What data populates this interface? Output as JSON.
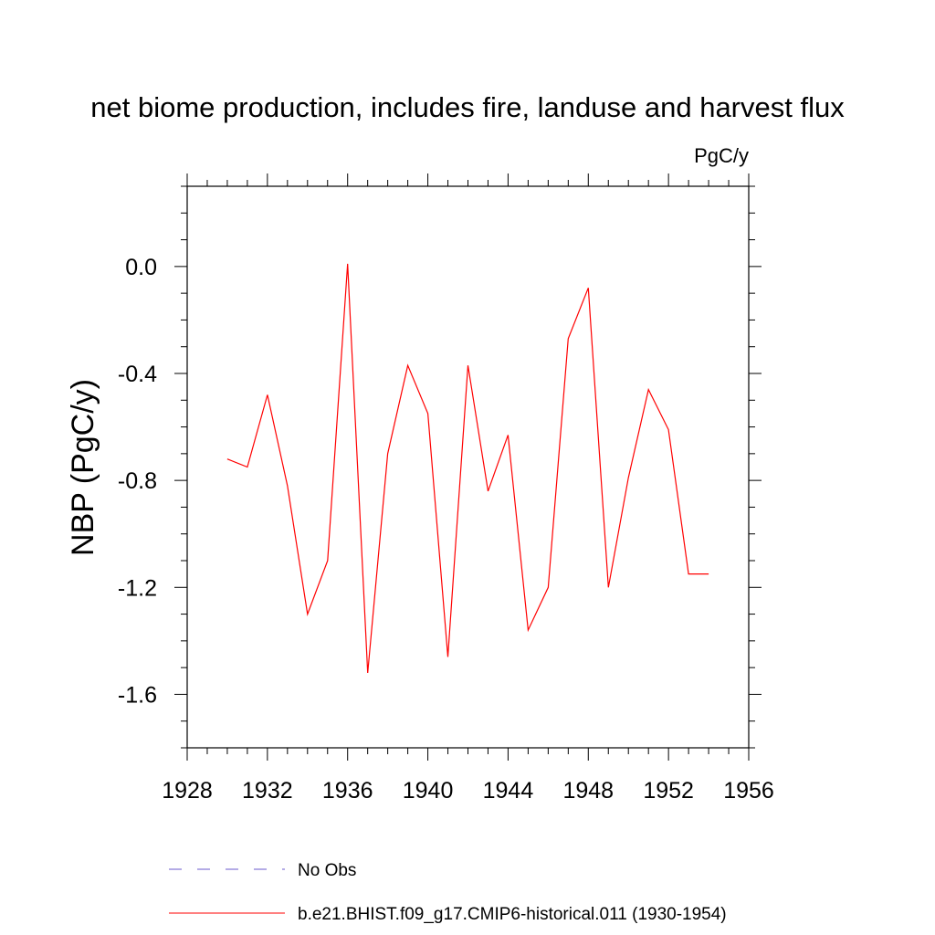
{
  "chart_data": {
    "type": "line",
    "title": "net biome production, includes fire, landuse and harvest flux",
    "units_label": "PgC/y",
    "ylabel": "NBP  (PgC/y)",
    "xlabel": "",
    "xlim": [
      1928,
      1956
    ],
    "ylim": [
      -1.8,
      0.3
    ],
    "x_ticks": [
      1928,
      1932,
      1936,
      1940,
      1944,
      1948,
      1952,
      1956
    ],
    "x_tick_labels": [
      "1928",
      "1932",
      "1936",
      "1940",
      "1944",
      "1948",
      "1952",
      "1956"
    ],
    "y_ticks": [
      -1.6,
      -1.2,
      -0.8,
      -0.4,
      0.0
    ],
    "y_tick_labels": [
      "-1.6",
      "-1.2",
      "-0.8",
      "-0.4",
      "0.0"
    ],
    "grid": false,
    "legend_position": "bottom",
    "series": [
      {
        "name": "b.e21.BHIST.f09_g17.CMIP6-historical.011 (1930-1954)",
        "color": "#ff0000",
        "style": "solid",
        "x": [
          1930,
          1931,
          1932,
          1933,
          1934,
          1935,
          1936,
          1937,
          1938,
          1939,
          1940,
          1941,
          1942,
          1943,
          1944,
          1945,
          1946,
          1947,
          1948,
          1949,
          1950,
          1951,
          1952,
          1953,
          1954
        ],
        "y": [
          -0.72,
          -0.75,
          -0.48,
          -0.82,
          -1.3,
          -1.1,
          0.01,
          -1.52,
          -0.7,
          -0.37,
          -0.55,
          -1.46,
          -0.37,
          -0.84,
          -0.63,
          -1.36,
          -1.2,
          -0.27,
          -0.08,
          -1.2,
          -0.79,
          -0.46,
          -0.61,
          -1.15,
          -1.15
        ]
      }
    ],
    "legend": [
      {
        "label": "No Obs",
        "color": "#6a5acd",
        "style": "dashed"
      },
      {
        "label": "b.e21.BHIST.f09_g17.CMIP6-historical.011 (1930-1954)",
        "color": "#ff0000",
        "style": "solid"
      }
    ]
  }
}
